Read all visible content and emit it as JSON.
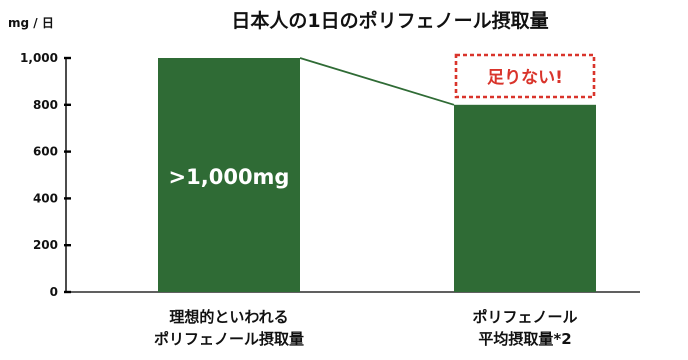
{
  "chart_data": {
    "type": "bar",
    "title": "日本人の1日のポリフェノール摂取量",
    "ylabel": "mg / 日",
    "ylim": [
      0,
      1000
    ],
    "yticks": [
      "0",
      "200",
      "400",
      "600",
      "800",
      "1,000"
    ],
    "yticks_values": [
      0,
      200,
      400,
      600,
      800,
      1000
    ],
    "categories": [
      [
        "理想的といわれる",
        "ポリフェノール摂取量"
      ],
      [
        "ポリフェノール",
        "平均摂取量*2"
      ]
    ],
    "values": [
      1000,
      800
    ],
    "bar_labels": [
      ">1,000mg",
      ""
    ],
    "annotation": "足りない!",
    "colors": {
      "bar": "#2f6b35",
      "connector": "#2f6b35",
      "annotation": "#d9342b",
      "axis": "#000000",
      "text": "#111111"
    }
  }
}
